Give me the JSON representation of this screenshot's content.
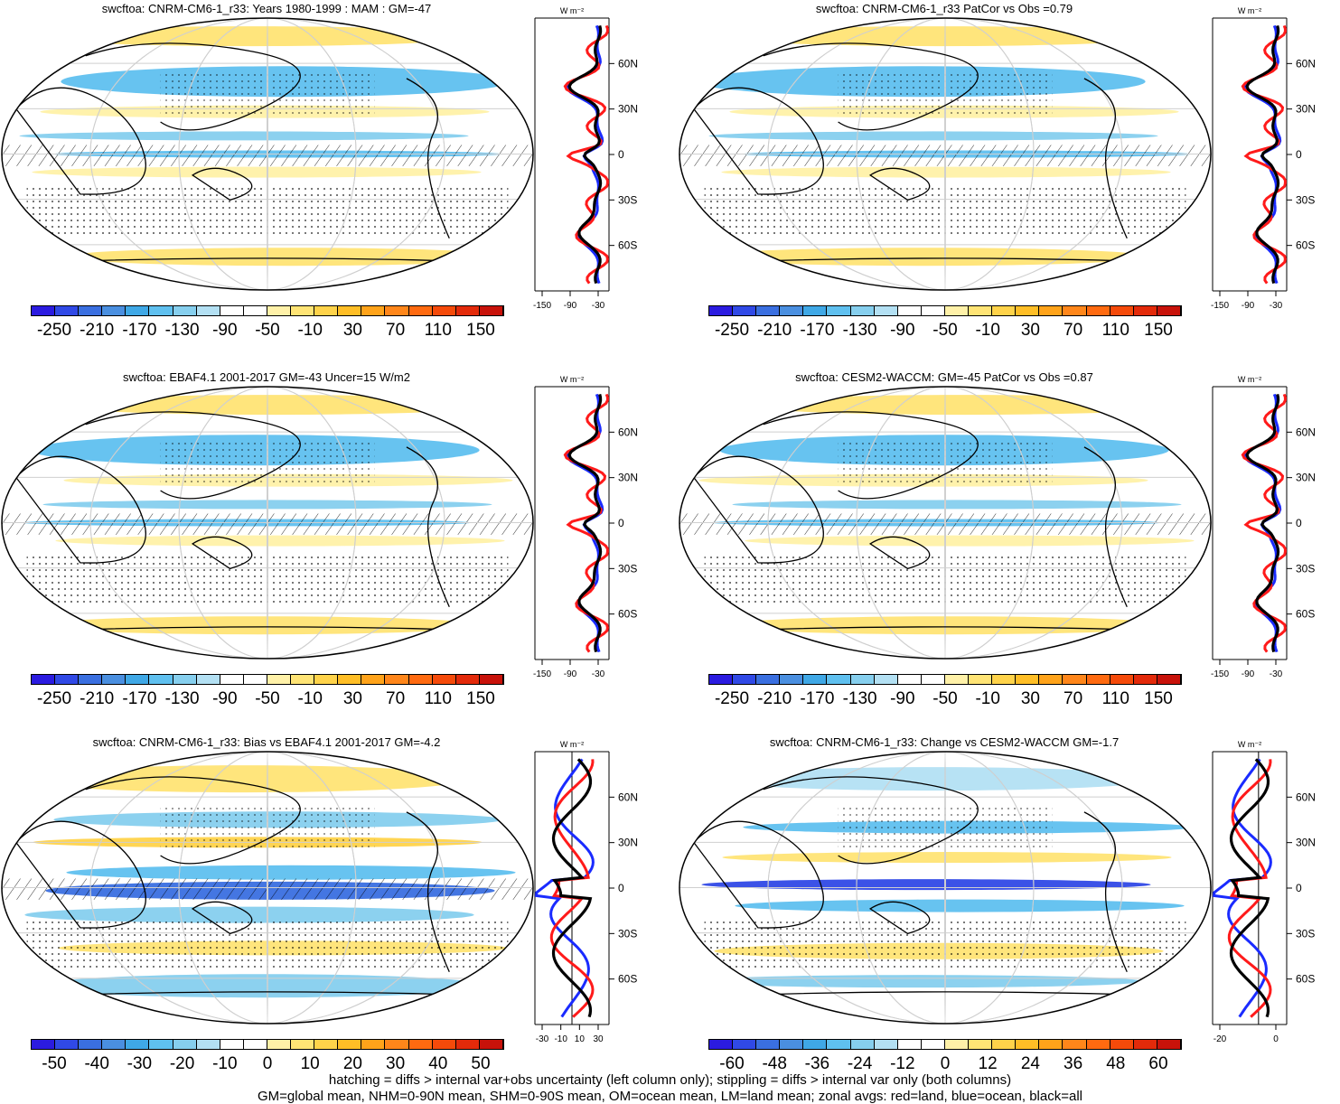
{
  "panels": [
    {
      "title": "swcftoa: CNRM-CM6-1_r33: Years 1980-1999 : MAM : GM=-47",
      "cb_labels": [
        "-250",
        "-210",
        "-170",
        "-130",
        "-90",
        "-50",
        "-10",
        "30",
        "70",
        "110",
        "150"
      ],
      "zonal_xticks": [
        "-150",
        "-90",
        "-30"
      ]
    },
    {
      "title": "swcftoa: CNRM-CM6-1_r33 PatCor vs Obs =0.79",
      "cb_labels": [
        "-250",
        "-210",
        "-170",
        "-130",
        "-90",
        "-50",
        "-10",
        "30",
        "70",
        "110",
        "150"
      ],
      "zonal_xticks": [
        "-150",
        "-90",
        "-30"
      ]
    },
    {
      "title": "swcftoa: EBAF4.1 2001-2017 GM=-43 Uncer=15 W/m2",
      "cb_labels": [
        "-250",
        "-210",
        "-170",
        "-130",
        "-90",
        "-50",
        "-10",
        "30",
        "70",
        "110",
        "150"
      ],
      "zonal_xticks": [
        "-150",
        "-90",
        "-30"
      ]
    },
    {
      "title": "swcftoa: CESM2-WACCM: GM=-45 PatCor vs Obs =0.87",
      "cb_labels": [
        "-250",
        "-210",
        "-170",
        "-130",
        "-90",
        "-50",
        "-10",
        "30",
        "70",
        "110",
        "150"
      ],
      "zonal_xticks": [
        "-150",
        "-90",
        "-30"
      ]
    },
    {
      "title": "swcftoa: CNRM-CM6-1_r33: Bias vs EBAF4.1 2001-2017 GM=-4.2",
      "cb_labels": [
        "-50",
        "-40",
        "-30",
        "-20",
        "-10",
        "0",
        "10",
        "20",
        "30",
        "40",
        "50"
      ],
      "zonal_xticks": [
        "-30",
        "-10",
        "10",
        "30"
      ]
    },
    {
      "title": "swcftoa: CNRM-CM6-1_r33: Change vs CESM2-WACCM GM=-1.7",
      "cb_labels": [
        "-60",
        "-48",
        "-36",
        "-24",
        "-12",
        "0",
        "12",
        "24",
        "36",
        "48",
        "60"
      ],
      "zonal_xticks": [
        "-20",
        "0"
      ]
    }
  ],
  "lat_labels": [
    "60N",
    "30N",
    "0",
    "30S",
    "60S"
  ],
  "units_label": "W m⁻²",
  "colorbar_colors": [
    "#2b1be0",
    "#3049e6",
    "#3a6fe0",
    "#4a8fe0",
    "#3fa8e6",
    "#5fc0ef",
    "#86cfee",
    "#b3e0f3",
    "#ffffff",
    "#ffffff",
    "#fff1a8",
    "#ffe475",
    "#ffd34a",
    "#ffbe26",
    "#ffa31a",
    "#ff861a",
    "#ff6a10",
    "#f54a0a",
    "#e32a0a",
    "#c8120a"
  ],
  "footer": {
    "line1": "hatching = diffs > internal var+obs uncertainty (left column only); stippling = diffs > internal var only (both columns)",
    "line2": "GM=global mean, NHM=0-90N mean, SHM=0-90S mean, OM=ocean mean, LM=land mean; zonal avgs: red=land, blue=ocean, black=all"
  }
}
